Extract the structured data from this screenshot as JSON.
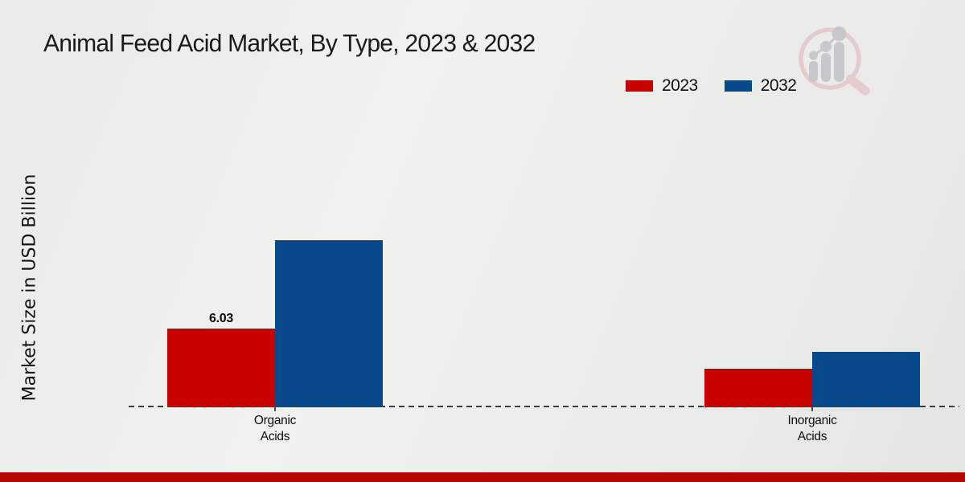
{
  "page": {
    "title": "Animal Feed Acid Market, By Type, 2023 & 2032",
    "watermark_icon": "market-research-future-magnifier-bar-chart-logo",
    "footer_bar_color": "#b90404",
    "watermark_colors": {
      "ring_pink": "#e6cbcc",
      "bars_gray": "#c8c8cc"
    }
  },
  "chart_data": {
    "type": "bar",
    "title": "Animal Feed Acid Market, By Type, 2023 & 2032",
    "xlabel": "",
    "ylabel": "Market Size in USD Billion",
    "categories": [
      "Organic Acids",
      "Inorganic Acids"
    ],
    "series": [
      {
        "name": "2023",
        "color": "#c80101",
        "values": [
          6.03,
          2.95
        ],
        "value_labels": [
          "6.03",
          ""
        ]
      },
      {
        "name": "2032",
        "color": "#07498a",
        "values": [
          12.8,
          4.25
        ],
        "value_labels": [
          "",
          ""
        ]
      }
    ],
    "ylim": [
      0,
      14
    ],
    "grid": false,
    "legend_position": "top-right",
    "baseline_style": "dashed",
    "note_only_labeled_value": "6.03"
  }
}
